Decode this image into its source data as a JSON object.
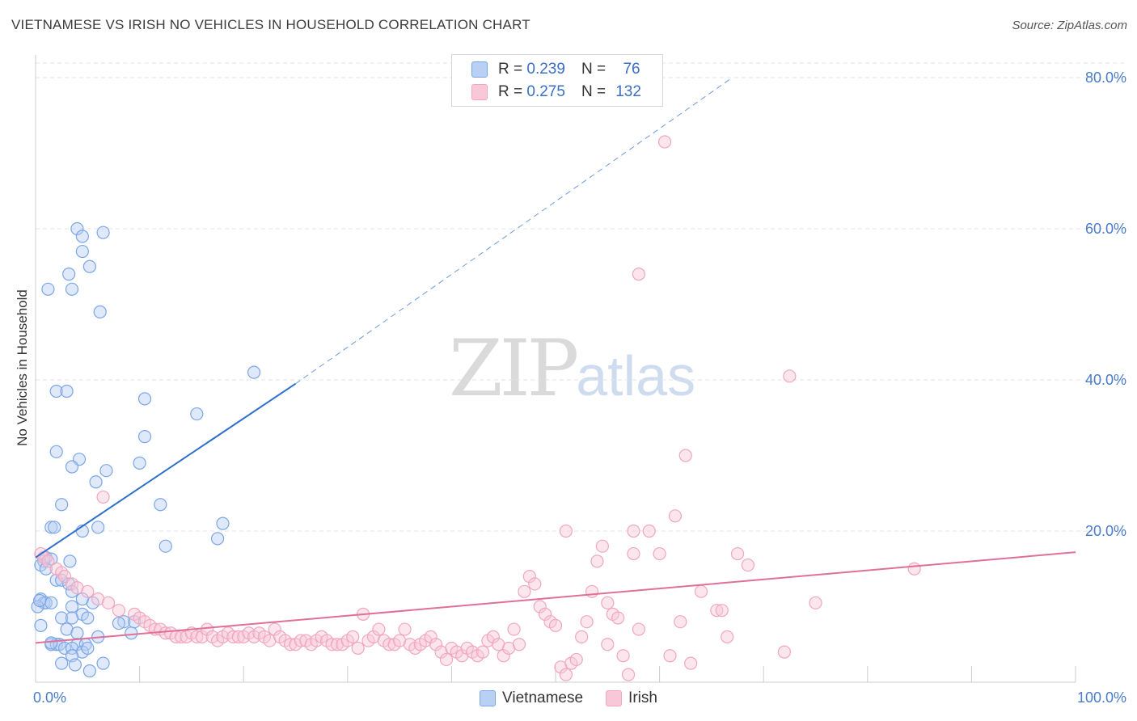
{
  "chart_data": {
    "type": "scatter",
    "title": "VIETNAMESE VS IRISH NO VEHICLES IN HOUSEHOLD CORRELATION CHART",
    "source": "Source: ZipAtlas.com",
    "xlabel": "",
    "ylabel": "No Vehicles in Household",
    "xlim": [
      0,
      100
    ],
    "ylim": [
      0,
      80
    ],
    "x_tick_labels": [
      "0.0%",
      "100.0%"
    ],
    "y_tick_labels": [
      "20.0%",
      "40.0%",
      "60.0%",
      "80.0%"
    ],
    "y_ticks": [
      20,
      40,
      60,
      80
    ],
    "grid": true,
    "legend_position": "top-center",
    "watermark": "ZIPatlas",
    "stats": [
      {
        "r_label": "R =",
        "r_value": "0.239",
        "n_label": "N =",
        "n_value": "76"
      },
      {
        "r_label": "R =",
        "r_value": "0.275",
        "n_label": "N =",
        "n_value": "132"
      }
    ],
    "series": [
      {
        "name": "Vietnamese",
        "color": "#7aa6e8",
        "fill": "#b9cff3",
        "line_color": "#2d6fcc",
        "trend": {
          "x0": 0,
          "y0": 16.5,
          "x1": 25,
          "y1": 39.5,
          "dash_x1": 67,
          "dash_y1": 80
        },
        "points": [
          [
            4,
            60
          ],
          [
            6.5,
            59.5
          ],
          [
            4.5,
            59
          ],
          [
            4.5,
            57
          ],
          [
            5.2,
            55
          ],
          [
            3.2,
            54
          ],
          [
            1.2,
            52
          ],
          [
            3.5,
            52
          ],
          [
            6.2,
            49
          ],
          [
            21,
            41
          ],
          [
            2,
            38.5
          ],
          [
            3,
            38.5
          ],
          [
            10.5,
            37.5
          ],
          [
            15.5,
            35.5
          ],
          [
            10.5,
            32.5
          ],
          [
            2,
            30.5
          ],
          [
            4.2,
            29.5
          ],
          [
            3.5,
            28.5
          ],
          [
            6.8,
            28
          ],
          [
            10,
            29
          ],
          [
            5.8,
            26.5
          ],
          [
            2.5,
            23.5
          ],
          [
            12,
            23.5
          ],
          [
            18,
            21
          ],
          [
            1.5,
            20.5
          ],
          [
            1.8,
            20.5
          ],
          [
            4.5,
            20
          ],
          [
            6,
            20.5
          ],
          [
            17.5,
            19
          ],
          [
            12.5,
            18
          ],
          [
            1,
            16.5
          ],
          [
            0.8,
            16
          ],
          [
            1.5,
            16.3
          ],
          [
            3.3,
            16
          ],
          [
            0.5,
            15.5
          ],
          [
            1,
            15
          ],
          [
            2,
            13.5
          ],
          [
            2.5,
            13.5
          ],
          [
            3.2,
            13
          ],
          [
            3.5,
            12
          ],
          [
            0.5,
            11
          ],
          [
            0.8,
            10.5
          ],
          [
            1,
            10.5
          ],
          [
            1.5,
            10.5
          ],
          [
            5.5,
            10.5
          ],
          [
            4.5,
            11
          ],
          [
            0.2,
            10
          ],
          [
            3.5,
            10
          ],
          [
            4.5,
            9
          ],
          [
            5,
            8.5
          ],
          [
            2.5,
            8.5
          ],
          [
            3.5,
            8.5
          ],
          [
            0.5,
            7.5
          ],
          [
            3,
            7
          ],
          [
            4,
            6.5
          ],
          [
            9.2,
            6.5
          ],
          [
            6,
            6
          ],
          [
            1.5,
            5
          ],
          [
            2,
            5
          ],
          [
            2.3,
            5
          ],
          [
            4,
            5
          ],
          [
            8.5,
            8
          ],
          [
            4.8,
            5
          ],
          [
            2.8,
            4.5
          ],
          [
            3.5,
            4.5
          ],
          [
            4.5,
            4
          ],
          [
            5,
            4.5
          ],
          [
            3.5,
            3.5
          ],
          [
            2.5,
            2.5
          ],
          [
            3.8,
            2.3
          ],
          [
            6.5,
            2.5
          ],
          [
            5.2,
            1.5
          ],
          [
            1.5,
            5.2
          ],
          [
            0.4,
            10.8
          ],
          [
            9.5,
            8
          ],
          [
            8,
            7.8
          ]
        ]
      },
      {
        "name": "Irish",
        "color": "#f0a6bf",
        "fill": "#f8c8d8",
        "line_color": "#e07099",
        "trend": {
          "x0": 0,
          "y0": 5.2,
          "x1": 100,
          "y1": 17.2
        },
        "points": [
          [
            60.5,
            71.5
          ],
          [
            58,
            54
          ],
          [
            72.5,
            40.5
          ],
          [
            62.5,
            30
          ],
          [
            6.5,
            24.5
          ],
          [
            61.5,
            22
          ],
          [
            51,
            20
          ],
          [
            57.5,
            20
          ],
          [
            0.5,
            17
          ],
          [
            0.8,
            16.5
          ],
          [
            1.2,
            16
          ],
          [
            2,
            15
          ],
          [
            2.5,
            14.5
          ],
          [
            2.8,
            14
          ],
          [
            3.5,
            13
          ],
          [
            4,
            12.5
          ],
          [
            5,
            12
          ],
          [
            6,
            11
          ],
          [
            7,
            10.5
          ],
          [
            8,
            9.5
          ],
          [
            9.5,
            9
          ],
          [
            10,
            8.5
          ],
          [
            10.5,
            8
          ],
          [
            11,
            7.5
          ],
          [
            11.5,
            7
          ],
          [
            12,
            7
          ],
          [
            12.5,
            6.5
          ],
          [
            13,
            6.5
          ],
          [
            13.5,
            6
          ],
          [
            14,
            6
          ],
          [
            14.5,
            6
          ],
          [
            15,
            6.5
          ],
          [
            15.5,
            6
          ],
          [
            16,
            6
          ],
          [
            16.5,
            7
          ],
          [
            17,
            6
          ],
          [
            17.5,
            5.5
          ],
          [
            18,
            6
          ],
          [
            18.5,
            6.5
          ],
          [
            19,
            6
          ],
          [
            19.5,
            6
          ],
          [
            20,
            6
          ],
          [
            20.5,
            6.5
          ],
          [
            21,
            6
          ],
          [
            21.5,
            6.5
          ],
          [
            22,
            6
          ],
          [
            22.5,
            5.5
          ],
          [
            23,
            7
          ],
          [
            23.5,
            6
          ],
          [
            24,
            5.5
          ],
          [
            24.5,
            5
          ],
          [
            25,
            5
          ],
          [
            25.5,
            5.5
          ],
          [
            26,
            5.5
          ],
          [
            26.5,
            5
          ],
          [
            27,
            5.5
          ],
          [
            27.5,
            6
          ],
          [
            28,
            5.5
          ],
          [
            28.5,
            5
          ],
          [
            29,
            5
          ],
          [
            29.5,
            5
          ],
          [
            30,
            5.5
          ],
          [
            30.5,
            6
          ],
          [
            31,
            4.5
          ],
          [
            31.5,
            9
          ],
          [
            32,
            5.5
          ],
          [
            32.5,
            6
          ],
          [
            33,
            7
          ],
          [
            33.5,
            5.5
          ],
          [
            34,
            5
          ],
          [
            34.5,
            5
          ],
          [
            35,
            5.5
          ],
          [
            35.5,
            7
          ],
          [
            36,
            5
          ],
          [
            36.5,
            4.5
          ],
          [
            37,
            5
          ],
          [
            37.5,
            5.5
          ],
          [
            38,
            6
          ],
          [
            38.5,
            5
          ],
          [
            39,
            4
          ],
          [
            39.5,
            3
          ],
          [
            40,
            4.5
          ],
          [
            40.5,
            4
          ],
          [
            41,
            3.5
          ],
          [
            41.5,
            4.5
          ],
          [
            42,
            4
          ],
          [
            42.5,
            3.5
          ],
          [
            43,
            4
          ],
          [
            43.5,
            5.5
          ],
          [
            44,
            6
          ],
          [
            44.5,
            5
          ],
          [
            45,
            3.5
          ],
          [
            45.5,
            4.5
          ],
          [
            46,
            7
          ],
          [
            46.5,
            5
          ],
          [
            47,
            12
          ],
          [
            47.5,
            14
          ],
          [
            48,
            13
          ],
          [
            48.5,
            10
          ],
          [
            49,
            9
          ],
          [
            49.5,
            8
          ],
          [
            50,
            7.5
          ],
          [
            50.5,
            2
          ],
          [
            51,
            1
          ],
          [
            51.5,
            2.5
          ],
          [
            52,
            3
          ],
          [
            52.5,
            6
          ],
          [
            53,
            8
          ],
          [
            53.5,
            12
          ],
          [
            54,
            16
          ],
          [
            54.5,
            18
          ],
          [
            55,
            5
          ],
          [
            55.5,
            9
          ],
          [
            56,
            8.5
          ],
          [
            56.5,
            3.5
          ],
          [
            57,
            1
          ],
          [
            57.5,
            17
          ],
          [
            58,
            7
          ],
          [
            59,
            20
          ],
          [
            60,
            17
          ],
          [
            61,
            3.5
          ],
          [
            62,
            8
          ],
          [
            63,
            2.5
          ],
          [
            64,
            12
          ],
          [
            65.5,
            9.5
          ],
          [
            66,
            9.5
          ],
          [
            67.5,
            17
          ],
          [
            68.5,
            15.5
          ],
          [
            72,
            4
          ],
          [
            75,
            10.5
          ],
          [
            84.5,
            15
          ],
          [
            66.5,
            6
          ],
          [
            55,
            10.5
          ]
        ]
      }
    ]
  }
}
